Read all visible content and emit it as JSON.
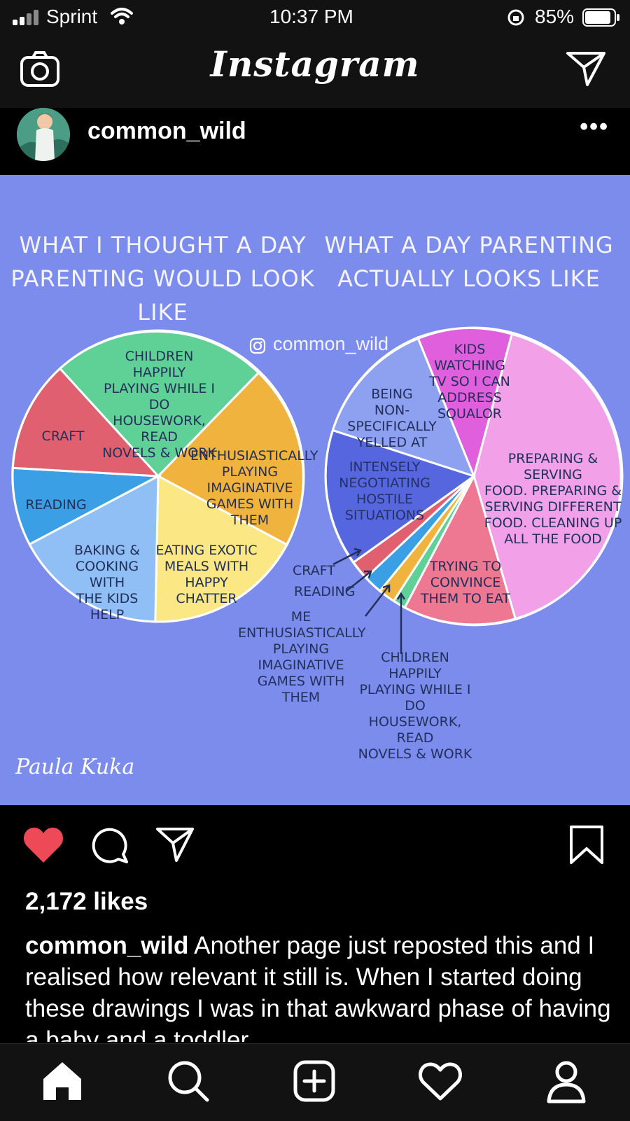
{
  "status": {
    "carrier": "Sprint",
    "time": "10:37 PM",
    "battery": "85%"
  },
  "app": {
    "title": "Instagram"
  },
  "post": {
    "username": "common_wild",
    "more": "•••",
    "image": {
      "left_title": [
        "WHAT I THOUGHT A DAY",
        "PARENTING WOULD LOOK LIKE"
      ],
      "right_title": [
        "WHAT A DAY PARENTING",
        "ACTUALLY LOOKS LIKE"
      ],
      "watermark": "common_wild",
      "signature": "Paula Kuka",
      "left_labels": {
        "children": [
          "CHILDREN HAPPILY",
          "PLAYING WHILE I DO",
          "HOUSEWORK, READ",
          "NOVELS & WORK"
        ],
        "games": [
          "ENTHUSIASTICALLY",
          "PLAYING IMAGINATIVE",
          "GAMES WITH THEM"
        ],
        "exotic": [
          "EATING EXOTIC",
          "MEALS WITH",
          "HAPPY CHATTER"
        ],
        "baking": [
          "BAKING &",
          "COOKING WITH",
          "THE KIDS HELP"
        ],
        "reading": [
          "READING"
        ],
        "craft": [
          "CRAFT"
        ]
      },
      "right_labels": {
        "tv": [
          "KIDS WATCHING",
          "TV SO I CAN",
          "ADDRESS",
          "SQUALOR"
        ],
        "food": [
          "PREPARING & SERVING",
          "FOOD. PREPARING &",
          "SERVING DIFFERENT",
          "FOOD. CLEANING UP",
          "ALL THE FOOD"
        ],
        "convince": [
          "TRYING TO",
          "CONVINCE",
          "THEM TO EAT"
        ],
        "negotiating": [
          "INTENSELY",
          "NEGOTIATING HOSTILE",
          "SITUATIONS"
        ],
        "yelled": [
          "BEING",
          "NON-SPECIFICALLY",
          "YELLED AT"
        ],
        "craft": [
          "CRAFT"
        ],
        "reading": [
          "READING"
        ],
        "me_games": [
          "ME ENTHUSIASTICALLY",
          "PLAYING IMAGINATIVE",
          "GAMES WITH THEM"
        ],
        "children": [
          "CHILDREN HAPPILY",
          "PLAYING WHILE I DO",
          "HOUSEWORK, READ",
          "NOVELS & WORK"
        ]
      },
      "colors": {
        "background": "#7b8cec",
        "green": "#5fd096",
        "orange": "#f0b33d",
        "yellow": "#fbe783",
        "lightblue": "#8fbff5",
        "blue": "#3a9fe4",
        "red": "#e06070",
        "pink": "#f2a0e8",
        "magenta": "#e05fdc",
        "periwinkle": "#8ea0f0",
        "indigo": "#5666de",
        "salmon": "#ee7791"
      }
    },
    "likes": "2,172 likes",
    "caption_user": "common_wild",
    "caption_text": "Another page just reposted this and I realised how relevant it still is. When I started doing these drawings I was in that awkward phase of having a baby and a toddler"
  },
  "icons": [
    "camera-icon",
    "direct-icon",
    "heart-icon",
    "comment-icon",
    "share-icon",
    "bookmark-icon",
    "home-icon",
    "search-icon",
    "new-post-icon",
    "activity-icon",
    "profile-icon"
  ]
}
